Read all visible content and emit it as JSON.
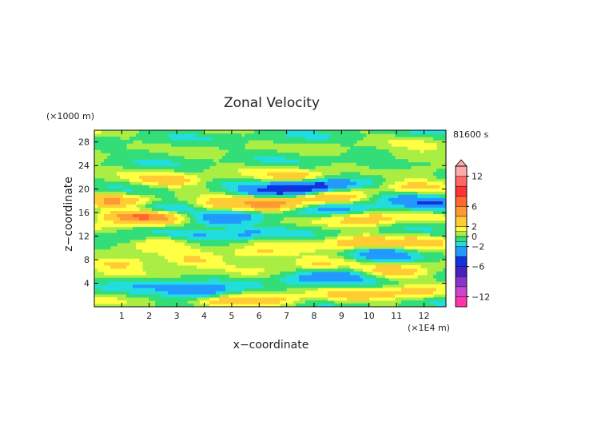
{
  "chart_data": {
    "type": "heatmap",
    "title": "Zonal Velocity",
    "xlabel": "x−coordinate",
    "ylabel": "z−coordinate",
    "x_unit_label": "(×1E4 m)",
    "y_unit_label": "(×1000 m)",
    "time_label": "81600 s",
    "xlim": [
      0,
      12.8
    ],
    "ylim": [
      0,
      30
    ],
    "x_ticks": [
      1,
      2,
      3,
      4,
      5,
      6,
      7,
      8,
      9,
      10,
      11,
      12
    ],
    "y_ticks": [
      4,
      8,
      12,
      16,
      20,
      24,
      28
    ],
    "x_tick_labels": [
      "1",
      "2",
      "3",
      "4",
      "5",
      "6",
      "7",
      "8",
      "9",
      "10",
      "11",
      "12"
    ],
    "y_tick_labels": [
      "4",
      "8",
      "12",
      "16",
      "20",
      "24",
      "28"
    ],
    "colorbar": {
      "levels": [
        -14,
        -12,
        -10,
        -8,
        -6,
        -4,
        -2,
        -1,
        0,
        1,
        2,
        4,
        6,
        8,
        10,
        12,
        14
      ],
      "colors": [
        "#ff33aa",
        "#cc44cc",
        "#8833cc",
        "#4422bb",
        "#1133dd",
        "#2299ff",
        "#22dddd",
        "#33dd77",
        "#aaee44",
        "#ffff44",
        "#ffcc33",
        "#ff9933",
        "#ff6633",
        "#ff3333",
        "#ff6666",
        "#ffaaaa"
      ],
      "tick_values": [
        12,
        6,
        2,
        0,
        -2,
        -6,
        -12
      ],
      "tick_labels": [
        "12",
        "6",
        "2",
        "0",
        "−2",
        "−6",
        "−12"
      ],
      "extend": "max"
    },
    "features": [
      {
        "x": 1.2,
        "z": 15.5,
        "value": 5.0
      },
      {
        "x": 2.2,
        "z": 15.3,
        "value": 4.0
      },
      {
        "x": 0.8,
        "z": 18.0,
        "value": 3.5
      },
      {
        "x": 1.8,
        "z": 16.8,
        "value": -2.0
      },
      {
        "x": 3.0,
        "z": 16.8,
        "value": -1.5
      },
      {
        "x": 4.5,
        "z": 17.2,
        "value": 3.0
      },
      {
        "x": 6.5,
        "z": 17.5,
        "value": 5.0
      },
      {
        "x": 8.5,
        "z": 18.5,
        "value": 3.5
      },
      {
        "x": 7.2,
        "z": 20.0,
        "value": -4.5
      },
      {
        "x": 8.2,
        "z": 20.8,
        "value": -4.0
      },
      {
        "x": 6.0,
        "z": 19.5,
        "value": -2.0
      },
      {
        "x": 7.5,
        "z": 22.0,
        "value": 3.0
      },
      {
        "x": 5.0,
        "z": 15.2,
        "value": -2.5
      },
      {
        "x": 4.0,
        "z": 14.5,
        "value": -2.0
      },
      {
        "x": 7.5,
        "z": 16.0,
        "value": -1.5
      },
      {
        "x": 9.0,
        "z": 17.0,
        "value": -1.5
      },
      {
        "x": 11.0,
        "z": 18.5,
        "value": -2.5
      },
      {
        "x": 11.5,
        "z": 20.5,
        "value": 3.0
      },
      {
        "x": 12.3,
        "z": 17.5,
        "value": -3.0
      },
      {
        "x": 10.0,
        "z": 15.0,
        "value": 3.0
      },
      {
        "x": 9.5,
        "z": 11.0,
        "value": 3.0
      },
      {
        "x": 10.5,
        "z": 9.0,
        "value": -2.5
      },
      {
        "x": 12.0,
        "z": 11.0,
        "value": 2.5
      },
      {
        "x": 1.5,
        "z": 12.0,
        "value": -1.5
      },
      {
        "x": 2.5,
        "z": 11.5,
        "value": 2.5
      },
      {
        "x": 3.5,
        "z": 12.5,
        "value": -1.5
      },
      {
        "x": 5.5,
        "z": 12.5,
        "value": -2.0
      },
      {
        "x": 1.0,
        "z": 7.5,
        "value": 3.0
      },
      {
        "x": 3.5,
        "z": 7.8,
        "value": 2.5
      },
      {
        "x": 6.0,
        "z": 9.0,
        "value": 2.5
      },
      {
        "x": 8.0,
        "z": 7.5,
        "value": 2.5
      },
      {
        "x": 9.0,
        "z": 5.5,
        "value": -2.5
      },
      {
        "x": 7.5,
        "z": 5.0,
        "value": -2.0
      },
      {
        "x": 11.0,
        "z": 6.0,
        "value": 2.5
      },
      {
        "x": 2.0,
        "z": 4.0,
        "value": -1.5
      },
      {
        "x": 4.0,
        "z": 2.0,
        "value": -3.0
      },
      {
        "x": 3.6,
        "z": 3.0,
        "value": -2.5
      },
      {
        "x": 4.5,
        "z": 1.0,
        "value": 3.0
      },
      {
        "x": 6.5,
        "z": 1.2,
        "value": 2.5
      },
      {
        "x": 9.5,
        "z": 2.0,
        "value": 2.0
      },
      {
        "x": 11.5,
        "z": 2.5,
        "value": 2.5
      },
      {
        "x": 2.5,
        "z": 26.5,
        "value": -1.0
      },
      {
        "x": 7.0,
        "z": 27.5,
        "value": -1.0
      },
      {
        "x": 11.5,
        "z": 25.5,
        "value": 2.0
      },
      {
        "x": 10.5,
        "z": 24.0,
        "value": -1.5
      },
      {
        "x": 2.8,
        "z": 21.5,
        "value": 2.5
      }
    ]
  }
}
